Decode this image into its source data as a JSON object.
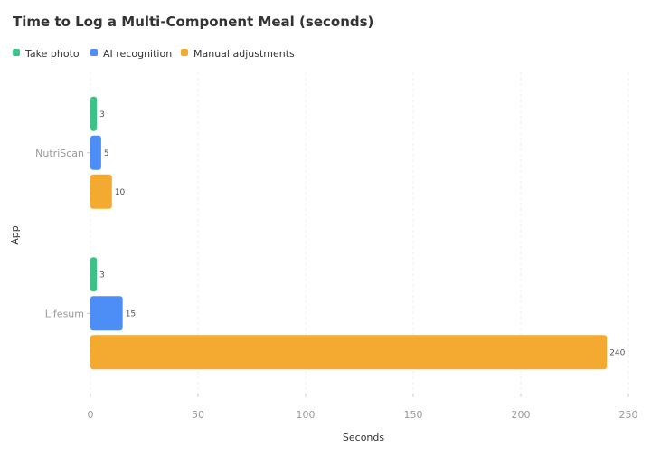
{
  "chart_data": {
    "type": "bar",
    "orientation": "horizontal",
    "title": "Time to Log a Multi-Component Meal (seconds)",
    "xlabel": "Seconds",
    "ylabel": "App",
    "categories": [
      "NutriScan",
      "Lifesum"
    ],
    "series": [
      {
        "name": "Take photo",
        "color": "#3cc187",
        "values": [
          3,
          3
        ]
      },
      {
        "name": "AI recognition",
        "color": "#4c8ef5",
        "values": [
          5,
          15
        ]
      },
      {
        "name": "Manual adjustments",
        "color": "#f4aa30",
        "values": [
          10,
          240
        ]
      }
    ],
    "xlim": [
      0,
      250
    ],
    "xticks": [
      0,
      50,
      100,
      150,
      200,
      250
    ],
    "grid": "vertical dashed",
    "legend": "top-left"
  }
}
